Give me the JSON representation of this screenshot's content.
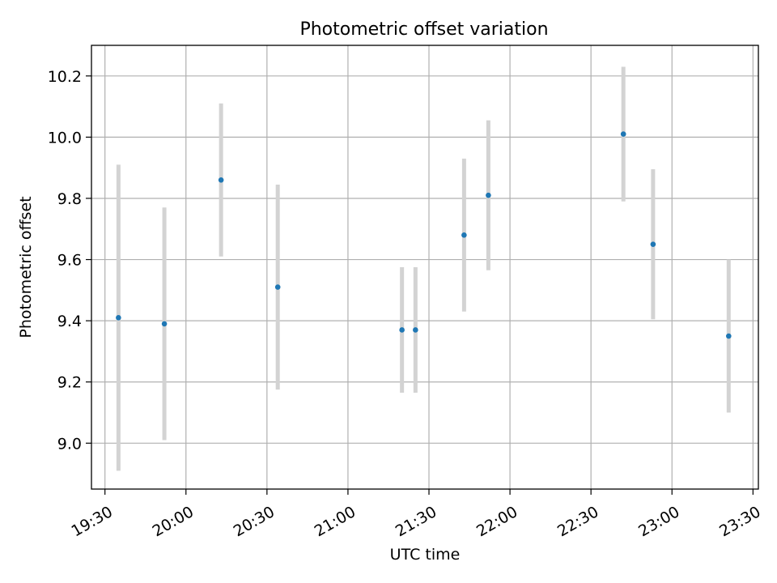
{
  "chart_data": {
    "type": "scatter",
    "title": "Photometric offset variation",
    "xlabel": "UTC time",
    "ylabel": "Photometric offset",
    "x_axis_type": "time",
    "xlim": [
      "19:25",
      "23:32"
    ],
    "ylim": [
      8.85,
      10.3
    ],
    "x_ticks": [
      "19:30",
      "20:00",
      "20:30",
      "21:00",
      "21:30",
      "22:00",
      "22:30",
      "23:00",
      "23:30"
    ],
    "y_ticks": [
      "9.0",
      "9.2",
      "9.4",
      "9.6",
      "9.8",
      "10.0",
      "10.2"
    ],
    "grid": true,
    "colors": {
      "point": "#1f77b4",
      "errorbar": "#d3d3d3",
      "grid": "#b0b0b0"
    },
    "series": [
      {
        "points": [
          {
            "x": "19:35",
            "y": 9.41,
            "err": 0.5
          },
          {
            "x": "19:52",
            "y": 9.39,
            "err": 0.38
          },
          {
            "x": "20:13",
            "y": 9.86,
            "err": 0.25
          },
          {
            "x": "20:34",
            "y": 9.51,
            "err": 0.335
          },
          {
            "x": "21:20",
            "y": 9.37,
            "err": 0.205
          },
          {
            "x": "21:25",
            "y": 9.37,
            "err": 0.205
          },
          {
            "x": "21:43",
            "y": 9.68,
            "err": 0.25
          },
          {
            "x": "21:52",
            "y": 9.81,
            "err": 0.245
          },
          {
            "x": "22:42",
            "y": 10.01,
            "err": 0.22
          },
          {
            "x": "22:53",
            "y": 9.65,
            "err": 0.245
          },
          {
            "x": "23:21",
            "y": 9.35,
            "err": 0.25
          }
        ]
      }
    ]
  }
}
